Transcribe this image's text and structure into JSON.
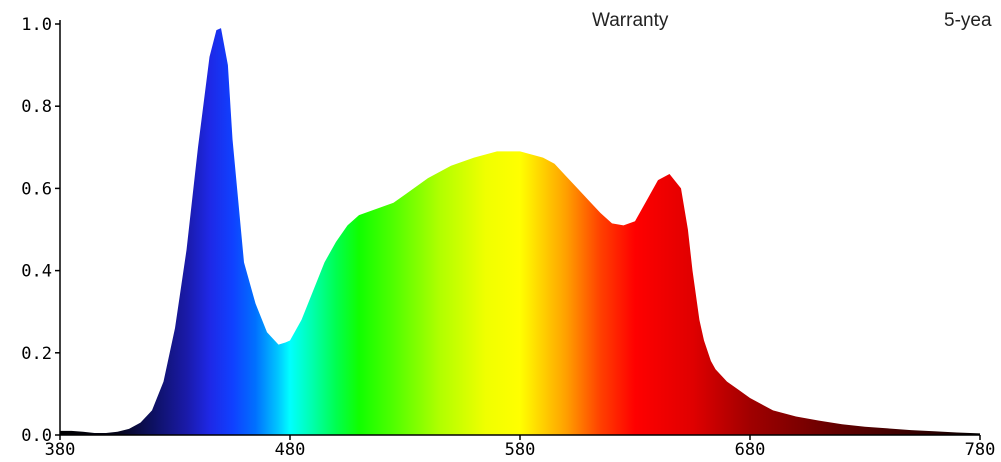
{
  "overlay": {
    "warranty_label": "Warranty",
    "warranty_value": "5-yea"
  },
  "chart_data": {
    "type": "area",
    "title": "",
    "xlabel": "",
    "ylabel": "",
    "xlim": [
      380,
      780
    ],
    "ylim": [
      0,
      1.0
    ],
    "x_ticks": [
      "380",
      "480",
      "580",
      "680",
      "780"
    ],
    "y_ticks": [
      "0.0",
      "0.2",
      "0.4",
      "0.6",
      "0.8",
      "1.0"
    ],
    "fill": "visible-spectrum gradient (wavelength colored)",
    "series": [
      {
        "x": [
          380,
          385,
          390,
          395,
          400,
          405,
          410,
          415,
          420,
          425,
          430,
          435,
          440,
          445,
          448,
          450,
          453,
          455,
          460,
          465,
          470,
          475,
          478,
          480,
          485,
          490,
          495,
          500,
          505,
          510,
          515,
          520,
          525,
          530,
          540,
          550,
          560,
          570,
          580,
          590,
          595,
          600,
          605,
          610,
          615,
          620,
          625,
          630,
          635,
          640,
          645,
          650,
          653,
          655,
          658,
          660,
          663,
          665,
          670,
          675,
          680,
          690,
          700,
          710,
          720,
          730,
          740,
          750,
          760,
          770,
          780
        ],
        "y": [
          0.01,
          0.01,
          0.008,
          0.005,
          0.005,
          0.008,
          0.015,
          0.03,
          0.06,
          0.13,
          0.26,
          0.45,
          0.7,
          0.92,
          0.985,
          0.99,
          0.9,
          0.72,
          0.42,
          0.32,
          0.25,
          0.22,
          0.225,
          0.23,
          0.28,
          0.35,
          0.42,
          0.47,
          0.51,
          0.535,
          0.545,
          0.555,
          0.565,
          0.585,
          0.625,
          0.655,
          0.675,
          0.69,
          0.69,
          0.675,
          0.66,
          0.63,
          0.6,
          0.57,
          0.54,
          0.515,
          0.51,
          0.52,
          0.57,
          0.62,
          0.635,
          0.6,
          0.5,
          0.4,
          0.28,
          0.23,
          0.18,
          0.16,
          0.13,
          0.11,
          0.09,
          0.06,
          0.045,
          0.035,
          0.026,
          0.02,
          0.016,
          0.012,
          0.009,
          0.006,
          0.004
        ]
      }
    ]
  }
}
